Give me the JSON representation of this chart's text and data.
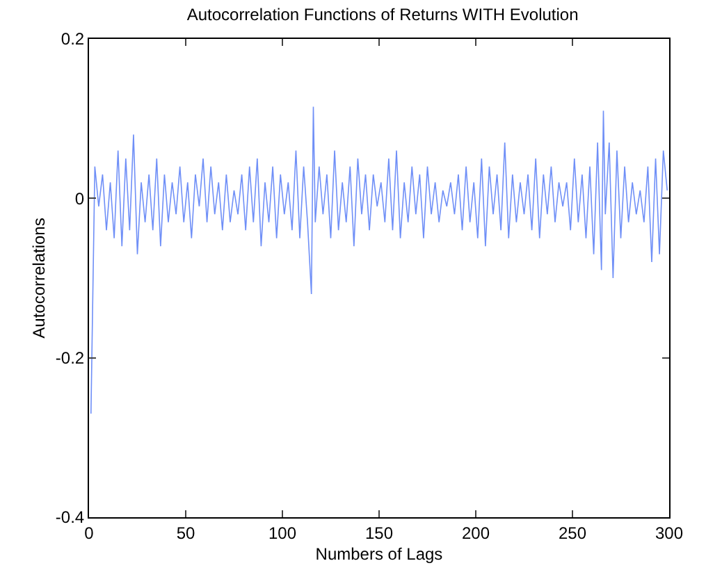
{
  "chart_data": {
    "type": "line",
    "title": "Autocorrelation Functions of Returns WITH Evolution",
    "xlabel": "Numbers of Lags",
    "ylabel": "Autocorrelations",
    "xlim": [
      0,
      300
    ],
    "ylim": [
      -0.4,
      0.2
    ],
    "xticks": [
      0,
      50,
      100,
      150,
      200,
      250,
      300
    ],
    "yticks": [
      -0.4,
      -0.2,
      0,
      0.2
    ],
    "marker": "none",
    "line_style": "solid",
    "x": [
      1,
      3,
      5,
      7,
      9,
      11,
      13,
      15,
      17,
      19,
      21,
      23,
      25,
      27,
      29,
      31,
      33,
      35,
      37,
      39,
      41,
      43,
      45,
      47,
      49,
      51,
      53,
      55,
      57,
      59,
      61,
      63,
      65,
      67,
      69,
      71,
      73,
      75,
      77,
      79,
      81,
      83,
      85,
      87,
      89,
      91,
      93,
      95,
      97,
      99,
      101,
      103,
      105,
      107,
      109,
      111,
      113,
      115,
      116,
      117,
      119,
      121,
      123,
      125,
      127,
      129,
      131,
      133,
      135,
      137,
      139,
      141,
      143,
      145,
      147,
      149,
      151,
      153,
      155,
      157,
      159,
      161,
      163,
      165,
      167,
      169,
      171,
      173,
      175,
      177,
      179,
      181,
      183,
      185,
      187,
      189,
      191,
      193,
      195,
      197,
      199,
      201,
      203,
      205,
      207,
      209,
      211,
      213,
      215,
      217,
      219,
      221,
      223,
      225,
      227,
      229,
      231,
      233,
      235,
      237,
      239,
      241,
      243,
      245,
      247,
      249,
      251,
      253,
      255,
      257,
      259,
      261,
      263,
      265,
      266,
      267,
      269,
      271,
      273,
      275,
      277,
      279,
      281,
      283,
      285,
      287,
      289,
      291,
      293,
      295,
      297,
      299
    ],
    "series": [
      {
        "color": "#6f8ff7",
        "values": [
          -0.27,
          0.04,
          -0.01,
          0.03,
          -0.04,
          0.02,
          -0.05,
          0.06,
          -0.06,
          0.05,
          -0.04,
          0.08,
          -0.07,
          0.02,
          -0.03,
          0.03,
          -0.04,
          0.05,
          -0.06,
          0.03,
          -0.03,
          0.02,
          -0.02,
          0.04,
          -0.03,
          0.02,
          -0.05,
          0.03,
          -0.01,
          0.05,
          -0.03,
          0.04,
          -0.02,
          0.02,
          -0.04,
          0.03,
          -0.03,
          0.01,
          -0.02,
          0.03,
          -0.04,
          0.04,
          -0.03,
          0.05,
          -0.06,
          0.02,
          -0.03,
          0.04,
          -0.05,
          0.03,
          -0.02,
          0.02,
          -0.04,
          0.06,
          -0.05,
          0.04,
          -0.03,
          -0.12,
          0.115,
          -0.03,
          0.04,
          -0.02,
          0.03,
          -0.05,
          0.06,
          -0.04,
          0.02,
          -0.03,
          0.04,
          -0.06,
          0.05,
          -0.02,
          0.03,
          -0.04,
          0.03,
          -0.01,
          0.02,
          -0.03,
          0.05,
          -0.04,
          0.06,
          -0.05,
          0.02,
          -0.03,
          0.04,
          -0.02,
          0.03,
          -0.05,
          0.04,
          -0.02,
          0.02,
          -0.03,
          0.01,
          -0.01,
          0.02,
          -0.02,
          0.03,
          -0.04,
          0.04,
          -0.03,
          0.02,
          -0.05,
          0.05,
          -0.06,
          0.04,
          -0.02,
          0.03,
          -0.04,
          0.07,
          -0.05,
          0.03,
          -0.03,
          0.02,
          -0.02,
          0.03,
          -0.04,
          0.05,
          -0.05,
          0.03,
          -0.02,
          0.04,
          -0.03,
          0.02,
          -0.01,
          0.02,
          -0.04,
          0.05,
          -0.03,
          0.03,
          -0.05,
          0.04,
          -0.07,
          0.07,
          -0.09,
          0.11,
          -0.02,
          0.07,
          -0.1,
          0.06,
          -0.05,
          0.04,
          -0.03,
          0.02,
          -0.02,
          0.01,
          -0.03,
          0.04,
          -0.08,
          0.05,
          -0.07,
          0.06,
          0.01
        ]
      }
    ]
  }
}
